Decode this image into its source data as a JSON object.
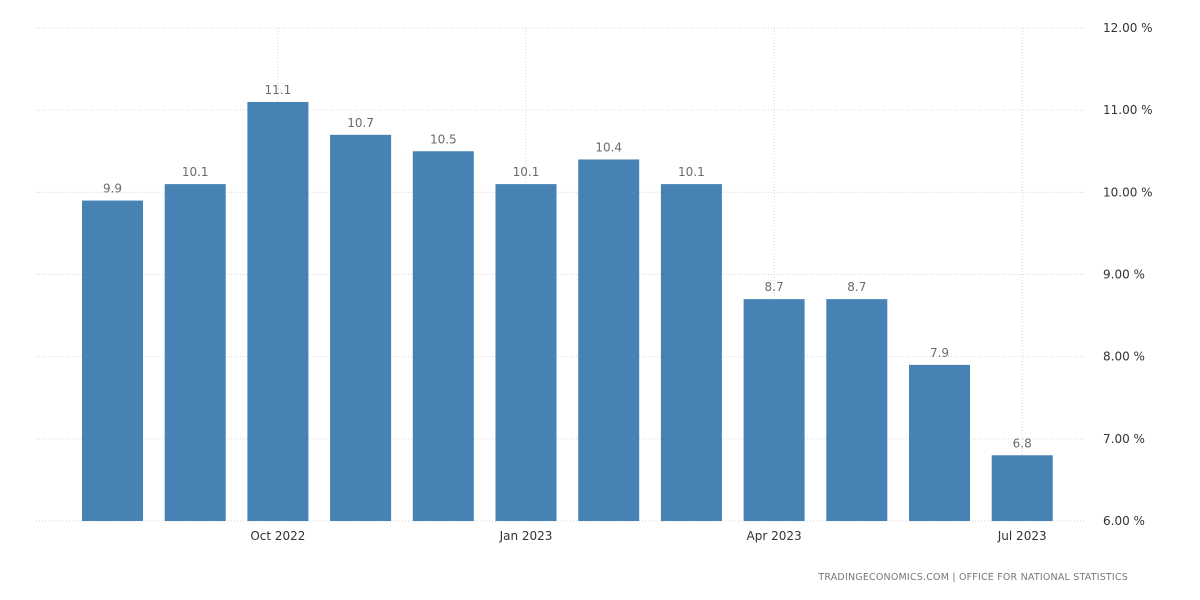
{
  "chart_data": {
    "type": "bar",
    "categories": [
      "2022-08",
      "2022-09",
      "2022-10",
      "2022-11",
      "2022-12",
      "2023-01",
      "2023-02",
      "2023-03",
      "2023-04",
      "2023-05",
      "2023-06",
      "2023-07"
    ],
    "values": [
      9.9,
      10.1,
      11.1,
      10.7,
      10.5,
      10.1,
      10.4,
      10.1,
      8.7,
      8.7,
      7.9,
      6.8
    ],
    "data_labels": [
      "9.9",
      "10.1",
      "11.1",
      "10.7",
      "10.5",
      "10.1",
      "10.4",
      "10.1",
      "8.7",
      "8.7",
      "7.9",
      "6.8"
    ],
    "x_ticks": [
      {
        "category": "2022-10",
        "label": "Oct 2022"
      },
      {
        "category": "2023-01",
        "label": "Jan 2023"
      },
      {
        "category": "2023-04",
        "label": "Apr 2023"
      },
      {
        "category": "2023-07",
        "label": "Jul 2023"
      }
    ],
    "y_ticks": [
      {
        "value": 12,
        "label": "12.00 %"
      },
      {
        "value": 11,
        "label": "11.00 %"
      },
      {
        "value": 10,
        "label": "10.00 %"
      },
      {
        "value": 9,
        "label": "9.00 %"
      },
      {
        "value": 8,
        "label": "8.00 %"
      },
      {
        "value": 7,
        "label": "7.00 %"
      },
      {
        "value": 6,
        "label": "6.00 %"
      }
    ],
    "ylim": [
      6,
      12
    ],
    "y_axis_position": "right",
    "grid": true,
    "bar_color": "#4682b4",
    "title": "",
    "xlabel": "",
    "ylabel": ""
  },
  "source": "TRADINGECONOMICS.COM  |  OFFICE FOR NATIONAL STATISTICS"
}
